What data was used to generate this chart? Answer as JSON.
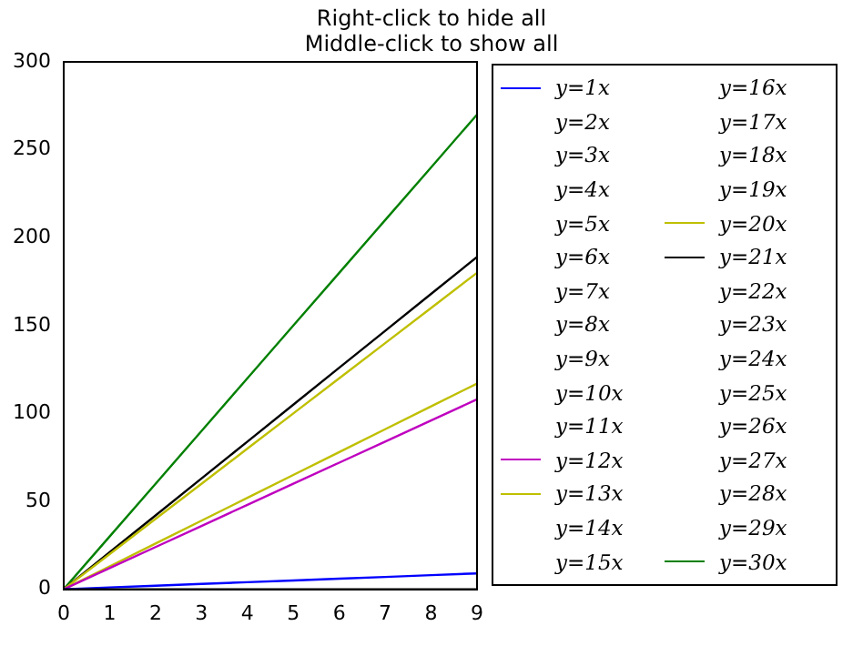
{
  "chart_data": {
    "type": "line",
    "title": "Right-click to hide all\nMiddle-click to show all",
    "x": [
      0,
      1,
      2,
      3,
      4,
      5,
      6,
      7,
      8,
      9
    ],
    "xlim": [
      0,
      9
    ],
    "xticks": [
      0,
      1,
      2,
      3,
      4,
      5,
      6,
      7,
      8,
      9
    ],
    "ylim": [
      0,
      300
    ],
    "yticks": [
      0,
      50,
      100,
      150,
      200,
      250,
      300
    ],
    "grid": false,
    "legend": "right",
    "marker": "none",
    "line_style": "solid",
    "series": [
      {
        "name": "y=1x",
        "color": "#0000ff",
        "values": [
          0,
          1,
          2,
          3,
          4,
          5,
          6,
          7,
          8,
          9
        ]
      },
      {
        "name": "y=2x",
        "values": [
          null,
          null,
          null,
          null,
          null,
          null,
          null,
          null,
          null,
          null
        ]
      },
      {
        "name": "y=3x",
        "values": [
          null,
          null,
          null,
          null,
          null,
          null,
          null,
          null,
          null,
          null
        ]
      },
      {
        "name": "y=4x",
        "values": [
          null,
          null,
          null,
          null,
          null,
          null,
          null,
          null,
          null,
          null
        ]
      },
      {
        "name": "y=5x",
        "values": [
          null,
          null,
          null,
          null,
          null,
          null,
          null,
          null,
          null,
          null
        ]
      },
      {
        "name": "y=6x",
        "values": [
          null,
          null,
          null,
          null,
          null,
          null,
          null,
          null,
          null,
          null
        ]
      },
      {
        "name": "y=7x",
        "values": [
          null,
          null,
          null,
          null,
          null,
          null,
          null,
          null,
          null,
          null
        ]
      },
      {
        "name": "y=8x",
        "values": [
          null,
          null,
          null,
          null,
          null,
          null,
          null,
          null,
          null,
          null
        ]
      },
      {
        "name": "y=9x",
        "values": [
          null,
          null,
          null,
          null,
          null,
          null,
          null,
          null,
          null,
          null
        ]
      },
      {
        "name": "y=10x",
        "values": [
          null,
          null,
          null,
          null,
          null,
          null,
          null,
          null,
          null,
          null
        ]
      },
      {
        "name": "y=11x",
        "values": [
          null,
          null,
          null,
          null,
          null,
          null,
          null,
          null,
          null,
          null
        ]
      },
      {
        "name": "y=12x",
        "color": "#bf00bf",
        "values": [
          0,
          12,
          24,
          36,
          48,
          60,
          72,
          84,
          96,
          108
        ]
      },
      {
        "name": "y=13x",
        "color": "#bfbf00",
        "values": [
          0,
          13,
          26,
          39,
          52,
          65,
          78,
          91,
          104,
          117
        ]
      },
      {
        "name": "y=14x",
        "values": [
          null,
          null,
          null,
          null,
          null,
          null,
          null,
          null,
          null,
          null
        ]
      },
      {
        "name": "y=15x",
        "values": [
          null,
          null,
          null,
          null,
          null,
          null,
          null,
          null,
          null,
          null
        ]
      },
      {
        "name": "y=16x",
        "values": [
          null,
          null,
          null,
          null,
          null,
          null,
          null,
          null,
          null,
          null
        ]
      },
      {
        "name": "y=17x",
        "values": [
          null,
          null,
          null,
          null,
          null,
          null,
          null,
          null,
          null,
          null
        ]
      },
      {
        "name": "y=18x",
        "values": [
          null,
          null,
          null,
          null,
          null,
          null,
          null,
          null,
          null,
          null
        ]
      },
      {
        "name": "y=19x",
        "values": [
          null,
          null,
          null,
          null,
          null,
          null,
          null,
          null,
          null,
          null
        ]
      },
      {
        "name": "y=20x",
        "color": "#bfbf00",
        "values": [
          0,
          20,
          40,
          60,
          80,
          100,
          120,
          140,
          160,
          180
        ]
      },
      {
        "name": "y=21x",
        "color": "#000000",
        "values": [
          0,
          21,
          42,
          63,
          84,
          105,
          126,
          147,
          168,
          189
        ]
      },
      {
        "name": "y=22x",
        "values": [
          null,
          null,
          null,
          null,
          null,
          null,
          null,
          null,
          null,
          null
        ]
      },
      {
        "name": "y=23x",
        "values": [
          null,
          null,
          null,
          null,
          null,
          null,
          null,
          null,
          null,
          null
        ]
      },
      {
        "name": "y=24x",
        "values": [
          null,
          null,
          null,
          null,
          null,
          null,
          null,
          null,
          null,
          null
        ]
      },
      {
        "name": "y=25x",
        "values": [
          null,
          null,
          null,
          null,
          null,
          null,
          null,
          null,
          null,
          null
        ]
      },
      {
        "name": "y=26x",
        "values": [
          null,
          null,
          null,
          null,
          null,
          null,
          null,
          null,
          null,
          null
        ]
      },
      {
        "name": "y=27x",
        "values": [
          null,
          null,
          null,
          null,
          null,
          null,
          null,
          null,
          null,
          null
        ]
      },
      {
        "name": "y=28x",
        "values": [
          null,
          null,
          null,
          null,
          null,
          null,
          null,
          null,
          null,
          null
        ]
      },
      {
        "name": "y=29x",
        "values": [
          null,
          null,
          null,
          null,
          null,
          null,
          null,
          null,
          null,
          null
        ]
      },
      {
        "name": "y=30x",
        "color": "#008000",
        "values": [
          0,
          30,
          60,
          90,
          120,
          150,
          180,
          210,
          240,
          270
        ]
      }
    ]
  }
}
